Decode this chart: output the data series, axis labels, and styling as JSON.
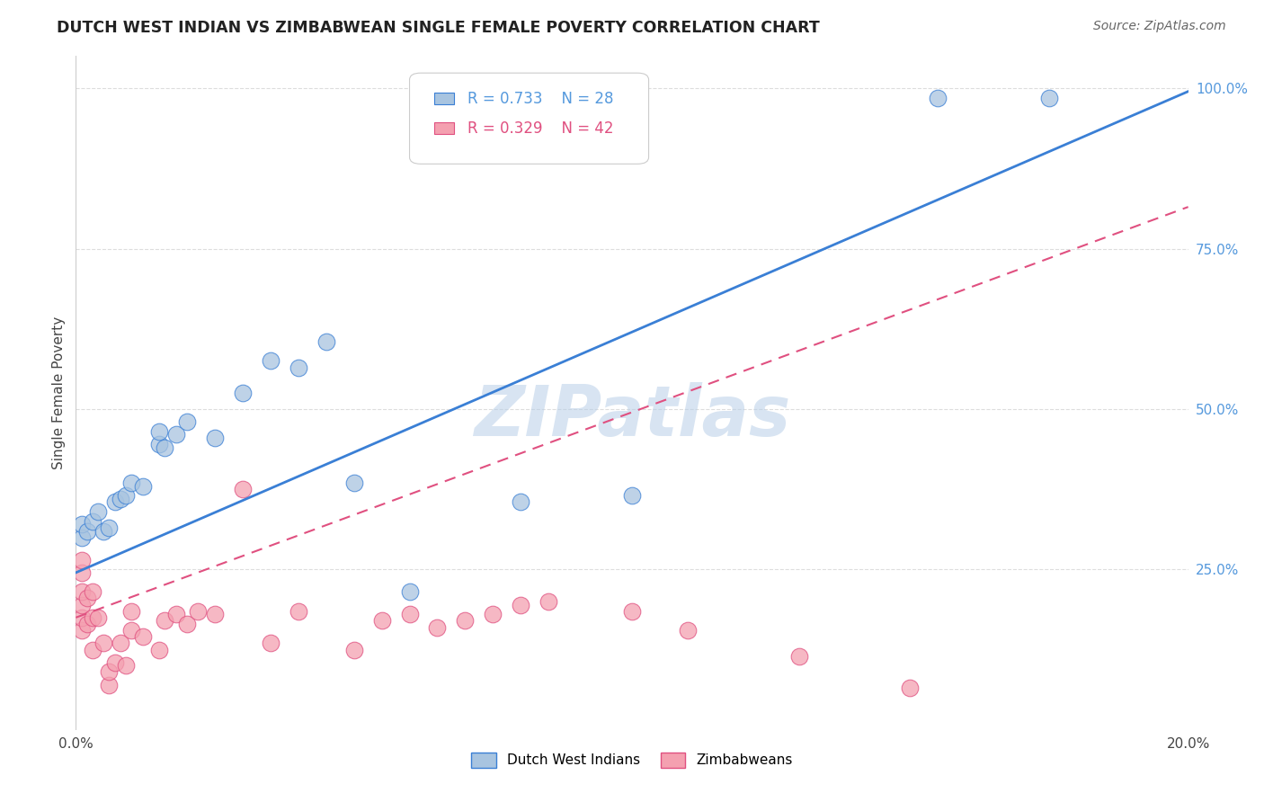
{
  "title": "DUTCH WEST INDIAN VS ZIMBABWEAN SINGLE FEMALE POVERTY CORRELATION CHART",
  "source": "Source: ZipAtlas.com",
  "ylabel": "Single Female Poverty",
  "xlim": [
    0.0,
    0.2
  ],
  "ylim": [
    0.0,
    1.05
  ],
  "yticks": [
    0.0,
    0.25,
    0.5,
    0.75,
    1.0
  ],
  "ytick_labels": [
    "",
    "25.0%",
    "50.0%",
    "75.0%",
    "100.0%"
  ],
  "xticks": [
    0.0,
    0.05,
    0.1,
    0.15,
    0.2
  ],
  "xtick_labels": [
    "0.0%",
    "",
    "",
    "",
    "20.0%"
  ],
  "legend1_R": "0.733",
  "legend1_N": "28",
  "legend2_R": "0.329",
  "legend2_N": "42",
  "blue_color": "#a8c4e0",
  "pink_color": "#f4a0b0",
  "blue_line_color": "#3a7fd5",
  "pink_line_color": "#e05080",
  "watermark": "ZIPatlas",
  "dutch_x": [
    0.001,
    0.001,
    0.002,
    0.003,
    0.004,
    0.005,
    0.006,
    0.007,
    0.008,
    0.009,
    0.01,
    0.012,
    0.015,
    0.015,
    0.016,
    0.018,
    0.02,
    0.025,
    0.03,
    0.035,
    0.04,
    0.045,
    0.05,
    0.06,
    0.08,
    0.1,
    0.155,
    0.175
  ],
  "dutch_y": [
    0.3,
    0.32,
    0.31,
    0.325,
    0.34,
    0.31,
    0.315,
    0.355,
    0.36,
    0.365,
    0.385,
    0.38,
    0.445,
    0.465,
    0.44,
    0.46,
    0.48,
    0.455,
    0.525,
    0.575,
    0.565,
    0.605,
    0.385,
    0.215,
    0.355,
    0.365,
    0.985,
    0.985
  ],
  "zimb_x": [
    0.001,
    0.001,
    0.001,
    0.001,
    0.001,
    0.001,
    0.002,
    0.002,
    0.003,
    0.003,
    0.003,
    0.004,
    0.005,
    0.006,
    0.006,
    0.007,
    0.008,
    0.009,
    0.01,
    0.01,
    0.012,
    0.015,
    0.016,
    0.018,
    0.02,
    0.022,
    0.025,
    0.03,
    0.035,
    0.04,
    0.05,
    0.055,
    0.06,
    0.065,
    0.07,
    0.075,
    0.08,
    0.085,
    0.1,
    0.11,
    0.13,
    0.15
  ],
  "zimb_y": [
    0.155,
    0.175,
    0.195,
    0.215,
    0.245,
    0.265,
    0.165,
    0.205,
    0.125,
    0.175,
    0.215,
    0.175,
    0.135,
    0.07,
    0.09,
    0.105,
    0.135,
    0.1,
    0.155,
    0.185,
    0.145,
    0.125,
    0.17,
    0.18,
    0.165,
    0.185,
    0.18,
    0.375,
    0.135,
    0.185,
    0.125,
    0.17,
    0.18,
    0.16,
    0.17,
    0.18,
    0.195,
    0.2,
    0.185,
    0.155,
    0.115,
    0.065
  ]
}
